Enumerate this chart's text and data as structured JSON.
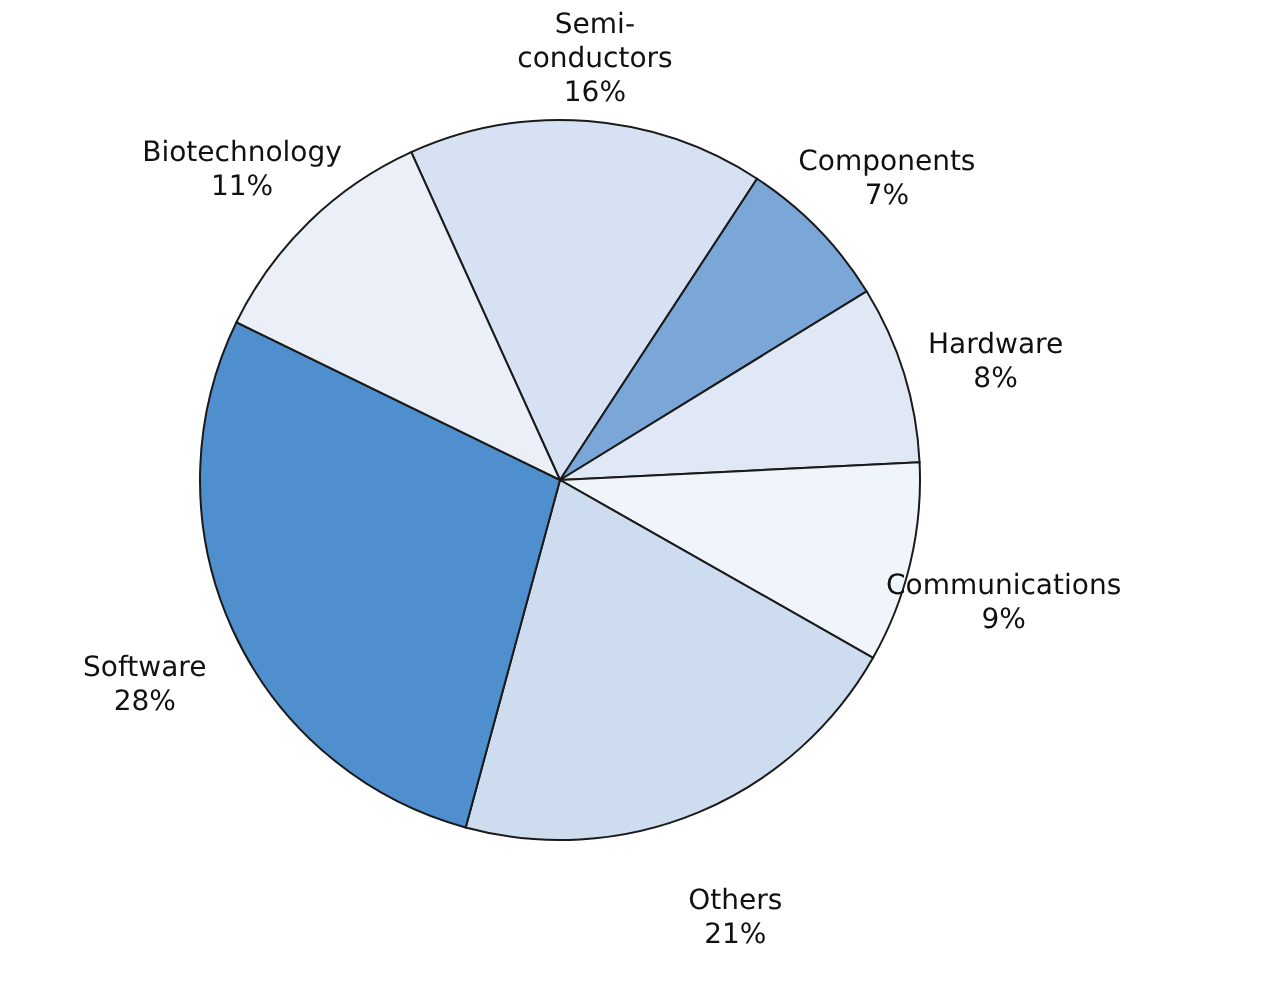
{
  "chart_data": {
    "type": "pie",
    "categories": [
      "Semi-conductors",
      "Components",
      "Hardware",
      "Communications",
      "Others",
      "Software",
      "Biotechnology"
    ],
    "values": [
      16,
      7,
      8,
      9,
      21,
      28,
      11
    ],
    "value_labels": [
      "16%",
      "7%",
      "8%",
      "9%",
      "21%",
      "28%",
      "11%"
    ],
    "colors": [
      "#d6e2f3",
      "#7aa6d8",
      "#e1e8f5",
      "#f0f4fb",
      "#cddcee",
      "#4f8fcd",
      "#eaeff8"
    ]
  }
}
